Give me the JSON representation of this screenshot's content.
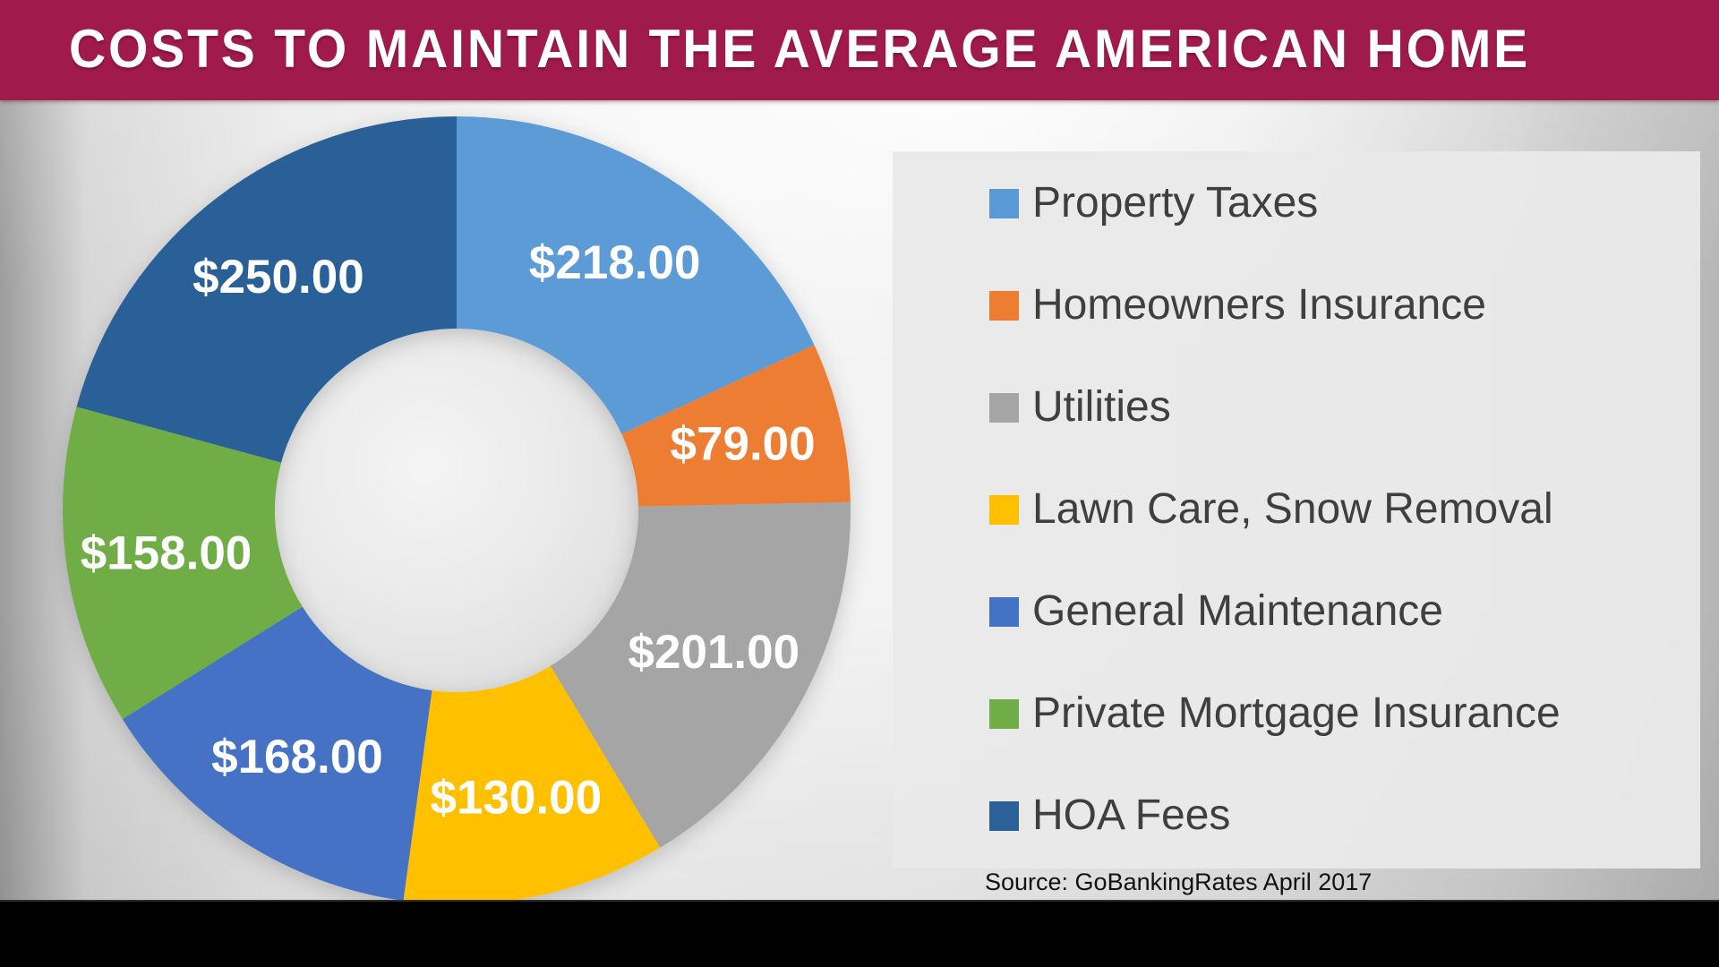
{
  "header": {
    "title": "COSTS TO MAINTAIN THE AVERAGE AMERICAN HOME"
  },
  "chart_data": {
    "type": "pie",
    "subtype": "donut",
    "title": "COSTS TO MAINTAIN THE AVERAGE AMERICAN HOME",
    "categories": [
      "Property Taxes",
      "Homeowners Insurance",
      "Utilities",
      "Lawn Care, Snow Removal",
      "General Maintenance",
      "Private Mortgage Insurance",
      "HOA Fees"
    ],
    "values": [
      218,
      79,
      201,
      130,
      168,
      158,
      250
    ],
    "data_labels": [
      "$218.00",
      "$79.00",
      "$201.00",
      "$130.00",
      "$168.00",
      "$158.00",
      "$250.00"
    ],
    "colors": [
      "#5B9BD5",
      "#ED7D31",
      "#A5A5A5",
      "#FFC000",
      "#4472C4",
      "#70AD47",
      "#2B6198"
    ],
    "total": 1204,
    "start_angle_deg": 0,
    "direction": "clockwise",
    "donut_hole_ratio": 0.46,
    "legend_position": "right",
    "source": "Source: GoBankingRates April 2017"
  },
  "source_note": {
    "text": "Source: GoBankingRates April 2017"
  },
  "theme": {
    "title_bar_bg": "#A01B4C",
    "title_text_color": "#FFFFFF",
    "legend_panel_bg": "#E9E9E9",
    "legend_text_color": "#3F3F3F",
    "data_label_color": "#FFFFFF",
    "bottom_bar_color": "#000000"
  }
}
